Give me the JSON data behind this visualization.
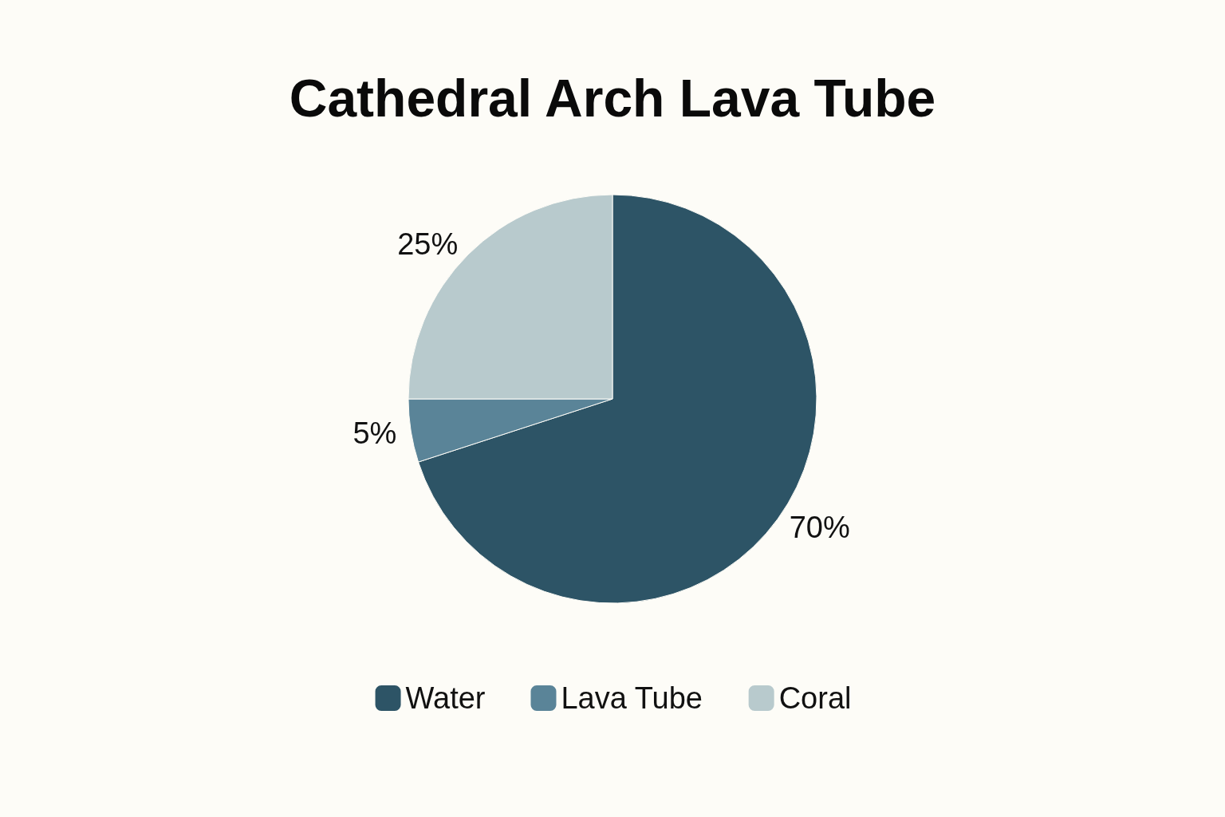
{
  "chart_data": {
    "type": "pie",
    "title": "Cathedral Arch Lava Tube",
    "categories": [
      "Water",
      "Lava Tube",
      "Coral"
    ],
    "values": [
      70,
      5,
      25
    ],
    "value_labels": [
      "70%",
      "5%",
      "25%"
    ],
    "colors": [
      "#2d5466",
      "#5a8498",
      "#b8cacd"
    ],
    "legend": "bottom"
  }
}
